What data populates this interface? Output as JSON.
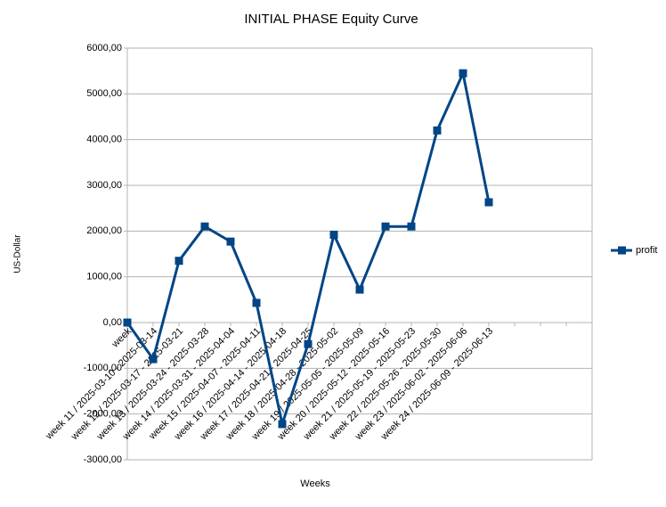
{
  "chart_data": {
    "type": "line",
    "title": "INITIAL PHASE Equity Curve",
    "x_label": "Weeks",
    "y_label": "US-Dollar",
    "categories": [
      "week",
      "week 11 / 2025-03-10 - 2025-03-14",
      "week 12 / 2025-03-17 - 2025-03-21",
      "week 13 / 2025-03-24 - 2025-03-28",
      "week 14 / 2025-03-31 - 2025-04-04",
      "week 15 / 2025-04-07 - 2025-04-11",
      "week 16 / 2025-04-14 - 2025-04-18",
      "week 17 / 2025-04-21 - 2025-04-25",
      "week 18 / 2025-04-28 - 2025-05-02",
      "week 19 / 2025-05-05 - 2025-05-09",
      "week 20 / 2025-05-12 - 2025-05-16",
      "week 21 / 2025-05-19 - 2025-05-23",
      "week 22 / 2025-05-26 - 2025-05-30",
      "week 23 / 2025-06-02 - 2025-06-06",
      "week 24 / 2025-06-09 - 2025-06-13",
      null,
      null,
      null,
      null
    ],
    "series": [
      {
        "name": "profit",
        "color": "#004586",
        "values": [
          0,
          -800,
          1350,
          2100,
          1770,
          430,
          -2220,
          -470,
          1920,
          720,
          2100,
          2100,
          4200,
          5450,
          2630,
          null,
          null,
          null,
          null
        ]
      }
    ],
    "ylim": [
      -3000,
      6000
    ],
    "yticks": [
      {
        "value": -3000,
        "label": "-3000,00"
      },
      {
        "value": -2000,
        "label": "-2000,00"
      },
      {
        "value": -1000,
        "label": "-1000,00"
      },
      {
        "value": 0,
        "label": "0,00"
      },
      {
        "value": 1000,
        "label": "1000,00"
      },
      {
        "value": 2000,
        "label": "2000,00"
      },
      {
        "value": 3000,
        "label": "3000,00"
      },
      {
        "value": 4000,
        "label": "4000,00"
      },
      {
        "value": 5000,
        "label": "5000,00"
      },
      {
        "value": 6000,
        "label": "6000,00"
      }
    ],
    "grid": true,
    "legend": "right"
  }
}
